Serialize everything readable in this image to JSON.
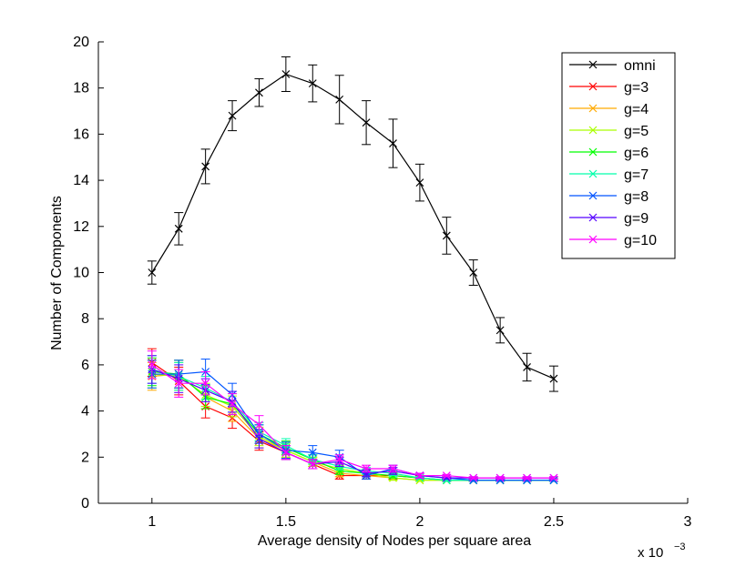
{
  "chart_data": {
    "type": "line",
    "title": "",
    "xlabel": "Average density of Nodes per square area",
    "ylabel": "Number of Components",
    "x_exponent_label": {
      "base": "x 10",
      "exp": "−3"
    },
    "xlim": [
      0.8,
      3.0
    ],
    "ylim": [
      0,
      20
    ],
    "xticks": [
      1,
      1.5,
      2,
      2.5,
      3
    ],
    "xtick_labels": [
      "1",
      "1.5",
      "2",
      "2.5",
      "3"
    ],
    "yticks": [
      0,
      2,
      4,
      6,
      8,
      10,
      12,
      14,
      16,
      18,
      20
    ],
    "ytick_labels": [
      "0",
      "2",
      "4",
      "6",
      "8",
      "10",
      "12",
      "14",
      "16",
      "18",
      "20"
    ],
    "grid": false,
    "legend_position": "top-right",
    "x": [
      1.0,
      1.1,
      1.2,
      1.3,
      1.4,
      1.5,
      1.6,
      1.7,
      1.8,
      1.9,
      2.0,
      2.1,
      2.2,
      2.3,
      2.4,
      2.5
    ],
    "series": [
      {
        "name": "omni",
        "color": "#000000",
        "values": [
          10.0,
          11.9,
          14.6,
          16.8,
          17.8,
          18.6,
          18.2,
          17.5,
          16.5,
          15.6,
          13.9,
          11.6,
          10.0,
          7.5,
          5.9,
          5.4
        ],
        "errors": [
          0.5,
          0.7,
          0.75,
          0.65,
          0.6,
          0.75,
          0.8,
          1.05,
          0.95,
          1.05,
          0.8,
          0.8,
          0.55,
          0.55,
          0.6,
          0.55
        ]
      },
      {
        "name": "g=3",
        "color": "#ff0000",
        "values": [
          6.1,
          5.3,
          4.2,
          3.7,
          2.7,
          2.2,
          1.7,
          1.2,
          1.2,
          1.2,
          1.1,
          1.0,
          1.0,
          1.0,
          1.0,
          1.0
        ],
        "errors": [
          0.6,
          0.6,
          0.5,
          0.45,
          0.4,
          0.3,
          0.2,
          0.15,
          0.15,
          0.15,
          0.1,
          0.05,
          0.05,
          0.05,
          0.05,
          0.05
        ]
      },
      {
        "name": "g=4",
        "color": "#ffaa00",
        "values": [
          5.5,
          5.6,
          4.6,
          4.0,
          2.8,
          2.3,
          1.8,
          1.3,
          1.2,
          1.1,
          1.0,
          1.0,
          1.0,
          1.0,
          1.0,
          1.0
        ],
        "errors": [
          0.6,
          0.6,
          0.5,
          0.45,
          0.4,
          0.3,
          0.2,
          0.15,
          0.15,
          0.1,
          0.05,
          0.05,
          0.05,
          0.05,
          0.05,
          0.05
        ]
      },
      {
        "name": "g=5",
        "color": "#aaff00",
        "values": [
          5.6,
          5.5,
          4.7,
          4.2,
          2.9,
          2.3,
          1.8,
          1.5,
          1.3,
          1.1,
          1.0,
          1.0,
          1.0,
          1.0,
          1.0,
          1.0
        ],
        "errors": [
          0.6,
          0.6,
          0.5,
          0.45,
          0.4,
          0.3,
          0.2,
          0.15,
          0.15,
          0.1,
          0.05,
          0.05,
          0.05,
          0.05,
          0.05,
          0.05
        ]
      },
      {
        "name": "g=6",
        "color": "#00ff00",
        "values": [
          5.7,
          5.6,
          4.6,
          4.3,
          3.0,
          2.4,
          1.9,
          1.4,
          1.3,
          1.2,
          1.1,
          1.0,
          1.0,
          1.0,
          1.0,
          1.0
        ],
        "errors": [
          0.6,
          0.6,
          0.5,
          0.45,
          0.4,
          0.3,
          0.2,
          0.15,
          0.15,
          0.1,
          0.05,
          0.05,
          0.05,
          0.05,
          0.05,
          0.05
        ]
      },
      {
        "name": "g=7",
        "color": "#00ffaa",
        "values": [
          5.8,
          5.5,
          5.0,
          4.4,
          3.1,
          2.5,
          1.9,
          1.6,
          1.4,
          1.3,
          1.1,
          1.0,
          1.0,
          1.0,
          1.0,
          1.0
        ],
        "errors": [
          0.6,
          0.6,
          0.5,
          0.45,
          0.4,
          0.3,
          0.2,
          0.15,
          0.15,
          0.1,
          0.05,
          0.05,
          0.05,
          0.05,
          0.05,
          0.05
        ]
      },
      {
        "name": "g=8",
        "color": "#0055ff",
        "values": [
          5.6,
          5.6,
          5.7,
          4.7,
          3.0,
          2.3,
          2.2,
          2.0,
          1.2,
          1.5,
          1.2,
          1.1,
          1.0,
          1.0,
          1.0,
          1.0
        ],
        "errors": [
          0.6,
          0.6,
          0.55,
          0.5,
          0.4,
          0.35,
          0.3,
          0.3,
          0.15,
          0.15,
          0.1,
          0.05,
          0.05,
          0.05,
          0.05,
          0.05
        ]
      },
      {
        "name": "g=9",
        "color": "#5500ff",
        "values": [
          5.8,
          5.4,
          4.9,
          4.4,
          2.8,
          2.2,
          1.7,
          1.8,
          1.3,
          1.4,
          1.2,
          1.1,
          1.1,
          1.1,
          1.1,
          1.1
        ],
        "errors": [
          0.6,
          0.6,
          0.5,
          0.45,
          0.4,
          0.3,
          0.2,
          0.2,
          0.15,
          0.15,
          0.1,
          0.05,
          0.05,
          0.05,
          0.05,
          0.05
        ]
      },
      {
        "name": "g=10",
        "color": "#ff00ff",
        "values": [
          6.0,
          5.2,
          5.2,
          4.3,
          3.4,
          2.2,
          1.7,
          1.9,
          1.5,
          1.5,
          1.2,
          1.2,
          1.1,
          1.1,
          1.1,
          1.1
        ],
        "errors": [
          0.6,
          0.6,
          0.5,
          0.45,
          0.4,
          0.3,
          0.2,
          0.2,
          0.15,
          0.15,
          0.1,
          0.05,
          0.05,
          0.05,
          0.05,
          0.05
        ]
      }
    ]
  }
}
